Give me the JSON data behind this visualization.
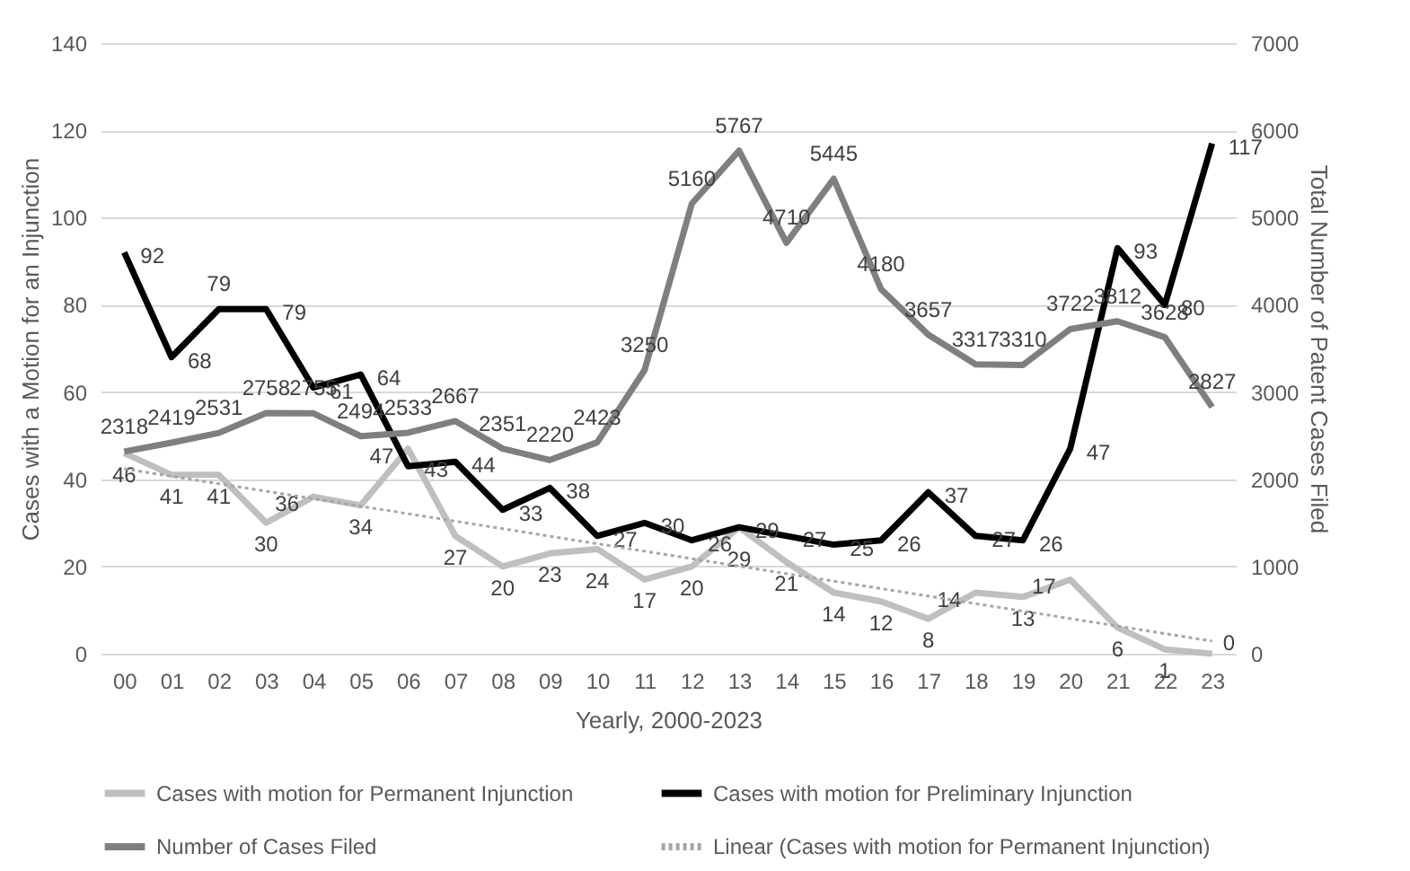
{
  "chart_data": {
    "type": "line",
    "xlabel": "Yearly, 2000-2023",
    "ylabel": "Cases with a Motion for an Injunction",
    "y2label": "Total Number of Patent Cases Filed",
    "categories": [
      "00",
      "01",
      "02",
      "03",
      "04",
      "05",
      "06",
      "07",
      "08",
      "09",
      "10",
      "11",
      "12",
      "13",
      "14",
      "15",
      "16",
      "17",
      "18",
      "19",
      "20",
      "21",
      "22",
      "23"
    ],
    "ylim": [
      0,
      140
    ],
    "yticks": [
      0,
      20,
      40,
      60,
      80,
      100,
      120,
      140
    ],
    "y2lim": [
      0,
      7000
    ],
    "y2ticks": [
      0,
      1000,
      2000,
      3000,
      4000,
      5000,
      6000,
      7000
    ],
    "grid": "y",
    "legend": "bottom",
    "line_style": "solid",
    "marker": "none",
    "series": [
      {
        "name": "Cases with motion for Permanent Injunction",
        "color": "#bfbfbf",
        "values": [
          46,
          41,
          41,
          30,
          36,
          34,
          47,
          27,
          20,
          23,
          24,
          17,
          20,
          29,
          21,
          14,
          12,
          8,
          14,
          13,
          17,
          6,
          1,
          0
        ],
        "value_labels": [
          "46",
          "41",
          "41",
          "30",
          "36",
          "34",
          "47",
          "27",
          "20",
          "23",
          "24",
          "17",
          "20",
          "29",
          "21",
          "14",
          "12",
          "8",
          "14",
          "13",
          "17",
          "6",
          "1",
          "0"
        ]
      },
      {
        "name": "Cases with motion for Preliminary Injunction",
        "color": "#000000",
        "values": [
          92,
          68,
          79,
          79,
          61,
          64,
          43,
          44,
          33,
          38,
          27,
          30,
          26,
          29,
          27,
          25,
          26,
          37,
          27,
          26,
          47,
          93,
          80,
          117
        ],
        "value_labels": [
          "92",
          "68",
          "79",
          "79",
          "61",
          "64",
          "43",
          "44",
          "33",
          "38",
          "27",
          "30",
          "26",
          "29",
          "27",
          "25",
          "26",
          "37",
          "27",
          "26",
          "47",
          "93",
          "80",
          "117"
        ]
      },
      {
        "name": "Number of Cases Filed",
        "color": "#7f7f7f",
        "axis": "y2",
        "values": [
          2318,
          2419,
          2531,
          2758,
          2755,
          2494,
          2533,
          2667,
          2351,
          2220,
          2423,
          3250,
          5160,
          5767,
          4710,
          5445,
          4180,
          3657,
          3317,
          3310,
          3722,
          3812,
          3628,
          2827
        ],
        "value_labels": [
          "2318",
          "2419",
          "2531",
          "2758",
          "2755",
          "2494",
          "2533",
          "2667",
          "2351",
          "2220",
          "2423",
          "3250",
          "5160",
          "5767",
          "4710",
          "5445",
          "4180",
          "3657",
          "3317",
          "3310",
          "3722",
          "3812",
          "3628",
          "2827"
        ]
      },
      {
        "name": "Linear (Cases with motion for Permanent Injunction)",
        "color": "#a6a6a6",
        "line_style": "dotted",
        "x": [
          "00",
          "23"
        ],
        "values": [
          42.4,
          2.9
        ]
      }
    ]
  }
}
